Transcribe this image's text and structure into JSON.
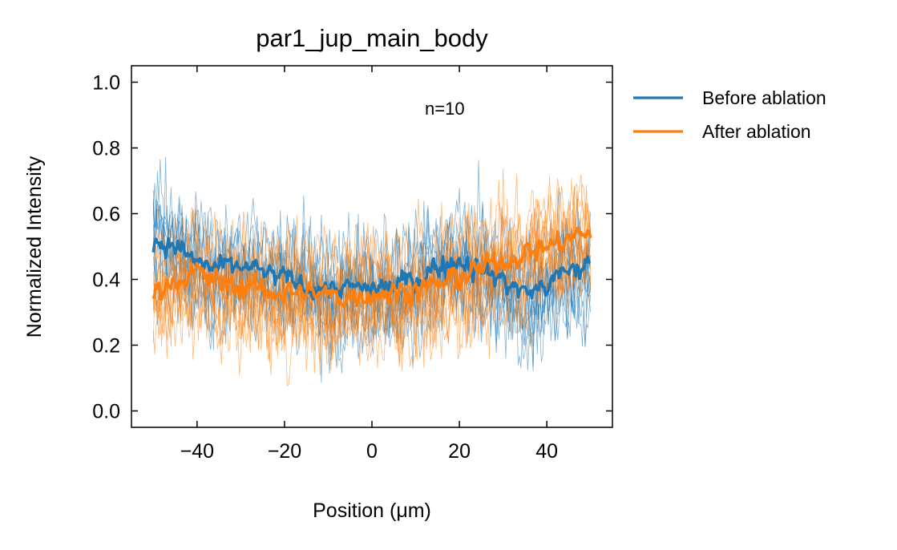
{
  "chart_data": {
    "type": "line",
    "title": "par1_jup_main_body",
    "xlabel": "Position (μm)",
    "ylabel": "Normalized Intensity",
    "xlim": [
      -55,
      55
    ],
    "ylim": [
      -0.05,
      1.05
    ],
    "x_ticks": [
      -40,
      -20,
      0,
      20,
      40
    ],
    "x_tick_labels": [
      "−40",
      "−20",
      "0",
      "20",
      "40"
    ],
    "y_ticks": [
      0.0,
      0.2,
      0.4,
      0.6,
      0.8,
      1.0
    ],
    "y_tick_labels": [
      "0.0",
      "0.2",
      "0.4",
      "0.6",
      "0.8",
      "1.0"
    ],
    "grid": false,
    "legend_position": "outside-right-top",
    "annotation": "n=10",
    "x_range": [
      -50,
      50
    ],
    "traces_per_condition": 10,
    "series": [
      {
        "name": "Before ablation",
        "color": "#1f77b4",
        "mean": {
          "x": [
            -50,
            -45,
            -40,
            -35,
            -30,
            -25,
            -20,
            -15,
            -10,
            -5,
            0,
            5,
            10,
            15,
            20,
            25,
            30,
            35,
            40,
            45,
            50
          ],
          "y": [
            0.52,
            0.5,
            0.45,
            0.43,
            0.44,
            0.42,
            0.4,
            0.38,
            0.37,
            0.37,
            0.37,
            0.38,
            0.4,
            0.44,
            0.46,
            0.43,
            0.4,
            0.36,
            0.38,
            0.43,
            0.44
          ]
        }
      },
      {
        "name": "After ablation",
        "color": "#ff7f0e",
        "mean": {
          "x": [
            -50,
            -45,
            -40,
            -35,
            -30,
            -25,
            -20,
            -15,
            -10,
            -5,
            0,
            5,
            10,
            15,
            20,
            25,
            30,
            35,
            40,
            45,
            50
          ],
          "y": [
            0.36,
            0.4,
            0.42,
            0.39,
            0.38,
            0.37,
            0.36,
            0.36,
            0.35,
            0.35,
            0.36,
            0.36,
            0.37,
            0.38,
            0.41,
            0.43,
            0.46,
            0.48,
            0.5,
            0.52,
            0.55
          ]
        }
      }
    ]
  }
}
